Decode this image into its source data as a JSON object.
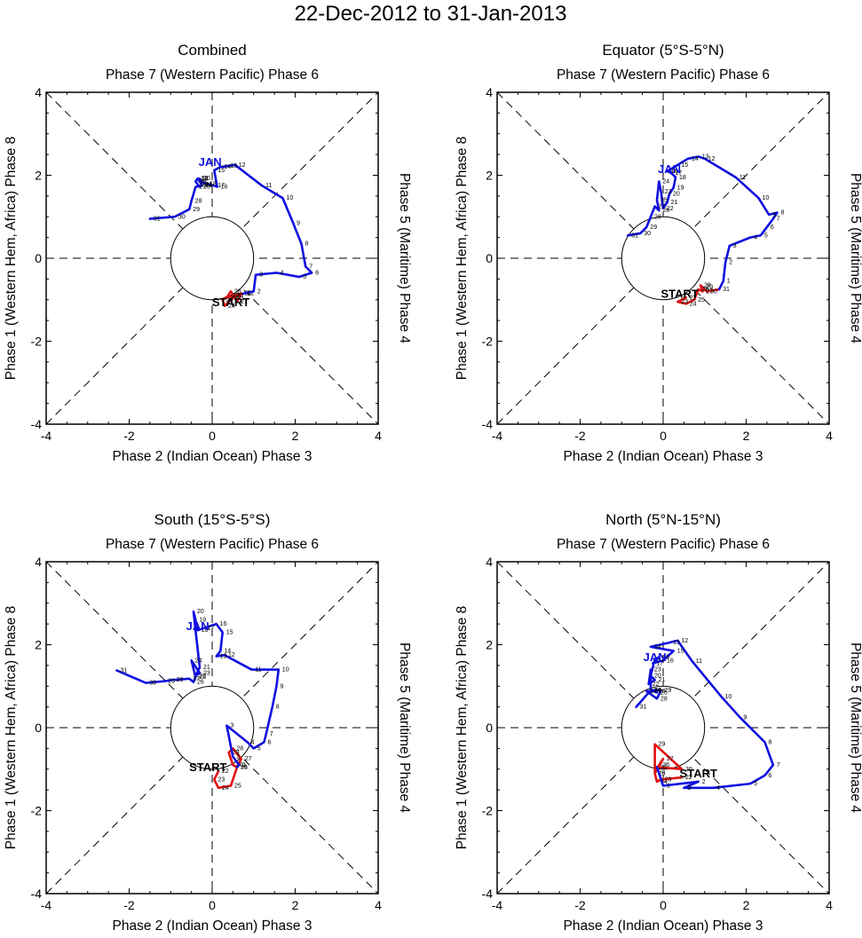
{
  "title": "22-Dec-2012 to 31-Jan-2013",
  "colors": {
    "december": "#e01010",
    "january": "#1010e0",
    "axes": "#000000"
  },
  "chart_data": [
    {
      "type": "line",
      "name": "combined",
      "title": "Combined",
      "top_label": "Phase 7 (Western Pacific) Phase 6",
      "bottom_label": "Phase 2 (Indian Ocean) Phase 3",
      "left_label": "Phase 1 (Western Hem, Africa) Phase 8",
      "right_label": "Phase 5 (Maritime) Phase 4",
      "xlim": [
        -4,
        4
      ],
      "ylim": [
        -4,
        4
      ],
      "xticks": [
        "-4",
        "-2",
        "0",
        "2",
        "4"
      ],
      "yticks": [
        "-4",
        "-2",
        "0",
        "2",
        "4"
      ],
      "start_label": "START",
      "month_label": "JAN",
      "start_pos": [
        0.45,
        -1.15
      ],
      "month_pos": [
        -0.05,
        2.22
      ],
      "december": {
        "days": [
          "22",
          "23",
          "24",
          "25",
          "26",
          "27",
          "28",
          "29",
          "30",
          "31"
        ],
        "x": [
          0.4,
          0.25,
          0.3,
          0.5,
          0.7,
          0.6,
          0.45,
          0.35,
          0.5,
          0.75
        ],
        "y": [
          -0.9,
          -1.0,
          -1.15,
          -0.95,
          -0.85,
          -1.05,
          -0.8,
          -0.95,
          -0.9,
          -0.85
        ]
      },
      "january": {
        "days": [
          "1",
          "2",
          "3",
          "4",
          "5",
          "6",
          "7",
          "8",
          "9",
          "10",
          "11",
          "12",
          "13",
          "14",
          "15",
          "16",
          "17",
          "18",
          "19",
          "20",
          "21",
          "22",
          "23",
          "24",
          "25",
          "26",
          "27",
          "28",
          "29",
          "30",
          "31"
        ],
        "x": [
          0.75,
          1.0,
          1.05,
          1.55,
          2.1,
          2.4,
          2.25,
          2.15,
          1.95,
          1.7,
          1.2,
          0.55,
          0.35,
          0.2,
          0.05,
          0.12,
          0.05,
          -0.15,
          -0.35,
          -0.3,
          -0.25,
          -0.35,
          -0.4,
          -0.35,
          -0.3,
          -0.25,
          -0.4,
          -0.5,
          -0.55,
          -0.9,
          -1.5
        ],
        "y": [
          -0.85,
          -0.8,
          -0.4,
          -0.35,
          -0.45,
          -0.35,
          -0.2,
          0.35,
          0.85,
          1.45,
          1.75,
          2.25,
          2.22,
          2.2,
          2.12,
          1.72,
          1.75,
          1.8,
          1.9,
          1.92,
          1.78,
          1.92,
          1.85,
          1.78,
          1.72,
          1.75,
          1.72,
          1.38,
          1.18,
          1.0,
          0.95
        ]
      }
    },
    {
      "type": "line",
      "name": "equator",
      "title": "Equator (5°S-5°N)",
      "top_label": "Phase 7 (Western Pacific) Phase 6",
      "bottom_label": "Phase 2 (Indian Ocean) Phase 3",
      "left_label": "Phase 1 (Western Hem, Africa) Phase 8",
      "right_label": "Phase 5 (Maritime) Phase 4",
      "xlim": [
        -4,
        4
      ],
      "ylim": [
        -4,
        4
      ],
      "xticks": [
        "-4",
        "-2",
        "0",
        "2",
        "4"
      ],
      "yticks": [
        "-4",
        "-2",
        "0",
        "2",
        "4"
      ],
      "start_label": "START",
      "month_label": "JAN",
      "start_pos": [
        0.4,
        -0.95
      ],
      "month_pos": [
        0.15,
        2.05
      ],
      "december": {
        "days": [
          "22",
          "23",
          "24",
          "25",
          "26",
          "27",
          "28",
          "29",
          "30",
          "31"
        ],
        "x": [
          0.55,
          0.35,
          0.55,
          0.75,
          0.85,
          0.95,
          0.9,
          0.95,
          1.05,
          1.35
        ],
        "y": [
          -0.95,
          -1.05,
          -1.1,
          -1.0,
          -0.75,
          -0.8,
          -0.65,
          -0.7,
          -0.8,
          -0.75
        ]
      },
      "january": {
        "days": [
          "1",
          "2",
          "3",
          "4",
          "5",
          "6",
          "7",
          "8",
          "9",
          "10",
          "11",
          "12",
          "13",
          "14",
          "15",
          "16",
          "17",
          "18",
          "19",
          "20",
          "21",
          "22",
          "23",
          "24",
          "25",
          "26",
          "27",
          "28",
          "29",
          "30",
          "31"
        ],
        "x": [
          1.45,
          1.5,
          1.6,
          2.1,
          2.35,
          2.5,
          2.65,
          2.75,
          2.55,
          2.3,
          1.75,
          1.0,
          0.85,
          0.6,
          0.35,
          0.1,
          0.2,
          0.3,
          0.25,
          0.15,
          0.1,
          0.0,
          -0.05,
          -0.1,
          -0.15,
          -0.1,
          -0.2,
          -0.3,
          -0.4,
          -0.55,
          -0.85
        ],
        "y": [
          -0.55,
          -0.1,
          0.3,
          0.5,
          0.55,
          0.75,
          0.95,
          1.1,
          1.05,
          1.45,
          1.95,
          2.4,
          2.45,
          2.4,
          2.25,
          2.1,
          2.05,
          1.95,
          1.7,
          1.55,
          1.35,
          1.2,
          1.6,
          1.85,
          1.4,
          1.15,
          1.25,
          1.0,
          0.75,
          0.6,
          0.55
        ]
      }
    },
    {
      "type": "line",
      "name": "south",
      "title": "South (15°S-5°S)",
      "top_label": "Phase 7 (Western Pacific) Phase 6",
      "bottom_label": "Phase 2 (Indian Ocean) Phase 3",
      "left_label": "Phase 1 (Western Hem, Africa) Phase 8",
      "right_label": "Phase 5 (Maritime) Phase 4",
      "xlim": [
        -4,
        4
      ],
      "ylim": [
        -4,
        4
      ],
      "xticks": [
        "-4",
        "-2",
        "0",
        "2",
        "4"
      ],
      "yticks": [
        "-4",
        "-2",
        "0",
        "2",
        "4"
      ],
      "start_label": "START",
      "month_label": "JAN",
      "start_pos": [
        -0.1,
        -1.05
      ],
      "month_pos": [
        -0.35,
        2.35
      ],
      "december": {
        "days": [
          "22",
          "23",
          "24",
          "25",
          "26",
          "27",
          "28",
          "29",
          "30",
          "31"
        ],
        "x": [
          0.15,
          0.05,
          0.15,
          0.45,
          0.6,
          0.7,
          0.5,
          0.4,
          0.5,
          0.6
        ],
        "y": [
          -1.05,
          -1.25,
          -1.45,
          -1.4,
          -0.95,
          -0.75,
          -0.5,
          -0.6,
          -0.9,
          -0.95
        ]
      },
      "january": {
        "days": [
          "1",
          "2",
          "3",
          "4",
          "5",
          "6",
          "7",
          "8",
          "9",
          "10",
          "11",
          "12",
          "13",
          "14",
          "15",
          "16",
          "17",
          "18",
          "19",
          "20",
          "21",
          "22",
          "23",
          "24",
          "25",
          "26",
          "27",
          "28",
          "29",
          "30",
          "31"
        ],
        "x": [
          0.65,
          0.5,
          0.35,
          0.85,
          1.0,
          1.25,
          1.3,
          1.45,
          1.55,
          1.6,
          0.95,
          0.3,
          0.1,
          0.2,
          0.25,
          0.1,
          -0.2,
          -0.35,
          -0.4,
          -0.45,
          -0.3,
          -0.4,
          -0.3,
          -0.5,
          -0.4,
          -0.45,
          -0.55,
          -0.95,
          -1.15,
          -1.6,
          -2.3
        ],
        "y": [
          -0.9,
          -0.7,
          0.05,
          -0.35,
          -0.5,
          -0.35,
          -0.15,
          0.5,
          1.0,
          1.4,
          1.4,
          1.75,
          1.72,
          1.85,
          2.3,
          2.5,
          2.4,
          2.35,
          2.6,
          2.8,
          1.45,
          1.25,
          1.32,
          1.62,
          1.22,
          1.1,
          1.18,
          1.15,
          1.12,
          1.08,
          1.38
        ]
      }
    },
    {
      "type": "line",
      "name": "north",
      "title": "North (5°N-15°N)",
      "top_label": "Phase 7 (Western Pacific) Phase 6",
      "bottom_label": "Phase 2 (Indian Ocean) Phase 3",
      "left_label": "Phase 1 (Western Hem, Africa) Phase 8",
      "right_label": "Phase 5 (Maritime) Phase 4",
      "xlim": [
        -4,
        4
      ],
      "ylim": [
        -4,
        4
      ],
      "xticks": [
        "-4",
        "-2",
        "0",
        "2",
        "4"
      ],
      "yticks": [
        "-4",
        "-2",
        "0",
        "2",
        "4"
      ],
      "start_label": "START",
      "month_label": "JAN",
      "start_pos": [
        0.85,
        -1.2
      ],
      "month_pos": [
        -0.2,
        1.6
      ],
      "december": {
        "days": [
          "22",
          "23",
          "24",
          "25",
          "26",
          "27",
          "28",
          "29",
          "30",
          "31"
        ],
        "x": [
          0.45,
          -0.05,
          -0.15,
          -0.2,
          -0.1,
          0.0,
          -0.2,
          -0.2,
          0.45,
          -0.15
        ],
        "y": [
          -1.2,
          -1.25,
          -1.3,
          -1.1,
          -0.9,
          -0.75,
          -1.1,
          -0.4,
          -1.0,
          -0.95
        ]
      },
      "january": {
        "days": [
          "1",
          "2",
          "3",
          "4",
          "5",
          "6",
          "7",
          "8",
          "9",
          "10",
          "11",
          "12",
          "13",
          "14",
          "15",
          "16",
          "17",
          "18",
          "19",
          "20",
          "21",
          "22",
          "23",
          "24",
          "25",
          "26",
          "27",
          "28",
          "29",
          "30",
          "31"
        ],
        "x": [
          0.0,
          0.85,
          0.5,
          1.2,
          2.1,
          2.45,
          2.65,
          2.45,
          1.85,
          1.4,
          0.7,
          0.35,
          0.15,
          -0.3,
          0.25,
          0.0,
          -0.25,
          -0.1,
          -0.2,
          -0.3,
          -0.2,
          -0.35,
          -0.3,
          -0.3,
          -0.15,
          -0.2,
          -0.4,
          -0.15,
          -0.05,
          -0.3,
          -0.65
        ],
        "y": [
          -1.4,
          -1.3,
          -1.45,
          -1.45,
          -1.35,
          -1.15,
          -0.9,
          -0.35,
          0.25,
          0.75,
          1.6,
          2.1,
          2.05,
          1.95,
          1.85,
          1.62,
          1.55,
          1.7,
          1.65,
          1.25,
          1.15,
          1.05,
          1.4,
          0.9,
          0.85,
          0.88,
          0.88,
          0.7,
          0.9,
          0.9,
          0.5
        ]
      }
    }
  ]
}
